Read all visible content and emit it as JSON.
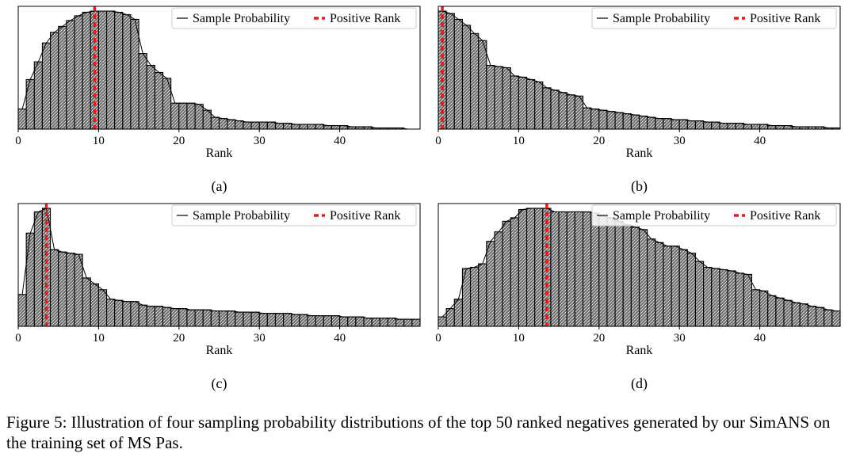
{
  "legend": {
    "line_label": "Sample Probability",
    "dash_label": "Positive Rank"
  },
  "axis": {
    "xlabel": "Rank",
    "xticks": [
      "0",
      "10",
      "20",
      "30",
      "40"
    ]
  },
  "colors": {
    "bar_fill": "#6e6e6e",
    "hatch": "#ffffff",
    "positive_line": "#e8191b",
    "line": "#000000"
  },
  "caption": "Figure 5: Illustration of four sampling probability distributions of the top 50 ranked negatives generated by our SimANS on the training set of MS Pas.",
  "chart_data": [
    {
      "type": "bar",
      "panel_label": "(a)",
      "xlabel": "Rank",
      "xlim": [
        0,
        50
      ],
      "xticks": [
        0,
        10,
        20,
        30,
        40
      ],
      "ylim": [
        0,
        1.0
      ],
      "legend": [
        "Sample Probability",
        "Positive Rank"
      ],
      "positive_rank": 9,
      "values": [
        0.17,
        0.42,
        0.57,
        0.73,
        0.82,
        0.87,
        0.92,
        0.96,
        0.99,
        1.0,
        1.0,
        1.0,
        0.99,
        0.97,
        0.93,
        0.64,
        0.54,
        0.48,
        0.43,
        0.22,
        0.22,
        0.22,
        0.21,
        0.16,
        0.1,
        0.09,
        0.08,
        0.07,
        0.06,
        0.06,
        0.06,
        0.06,
        0.05,
        0.05,
        0.04,
        0.04,
        0.04,
        0.04,
        0.03,
        0.03,
        0.03,
        0.02,
        0.02,
        0.02,
        0.01,
        0.01,
        0.01,
        0.01,
        0.0,
        0.0
      ]
    },
    {
      "type": "bar",
      "panel_label": "(b)",
      "xlabel": "Rank",
      "xlim": [
        0,
        50
      ],
      "xticks": [
        0,
        10,
        20,
        30,
        40
      ],
      "ylim": [
        0,
        1.0
      ],
      "legend": [
        "Sample Probability",
        "Positive Rank"
      ],
      "positive_rank": 0,
      "values": [
        1.0,
        0.98,
        0.93,
        0.88,
        0.81,
        0.75,
        0.54,
        0.53,
        0.52,
        0.45,
        0.44,
        0.42,
        0.4,
        0.35,
        0.33,
        0.31,
        0.29,
        0.28,
        0.18,
        0.17,
        0.16,
        0.15,
        0.14,
        0.13,
        0.12,
        0.11,
        0.1,
        0.09,
        0.09,
        0.08,
        0.08,
        0.07,
        0.07,
        0.06,
        0.06,
        0.05,
        0.05,
        0.05,
        0.04,
        0.04,
        0.04,
        0.03,
        0.03,
        0.03,
        0.02,
        0.02,
        0.02,
        0.02,
        0.01,
        0.01
      ]
    },
    {
      "type": "bar",
      "panel_label": "(c)",
      "xlabel": "Rank",
      "xlim": [
        0,
        50
      ],
      "xticks": [
        0,
        10,
        20,
        30,
        40
      ],
      "ylim": [
        0,
        1.0
      ],
      "legend": [
        "Sample Probability",
        "Positive Rank"
      ],
      "positive_rank": 3,
      "values": [
        0.27,
        0.79,
        0.97,
        1.0,
        0.65,
        0.63,
        0.62,
        0.61,
        0.41,
        0.36,
        0.31,
        0.23,
        0.22,
        0.21,
        0.21,
        0.18,
        0.17,
        0.17,
        0.16,
        0.15,
        0.15,
        0.14,
        0.14,
        0.14,
        0.13,
        0.13,
        0.13,
        0.12,
        0.12,
        0.12,
        0.11,
        0.11,
        0.11,
        0.11,
        0.1,
        0.1,
        0.09,
        0.09,
        0.09,
        0.09,
        0.08,
        0.08,
        0.08,
        0.07,
        0.07,
        0.07,
        0.07,
        0.06,
        0.06,
        0.06
      ]
    },
    {
      "type": "bar",
      "panel_label": "(d)",
      "xlabel": "Rank",
      "xlim": [
        0,
        50
      ],
      "xticks": [
        0,
        10,
        20,
        30,
        40
      ],
      "ylim": [
        0,
        1.0
      ],
      "legend": [
        "Sample Probability",
        "Positive Rank"
      ],
      "positive_rank": 13,
      "values": [
        0.08,
        0.15,
        0.23,
        0.49,
        0.5,
        0.53,
        0.72,
        0.8,
        0.89,
        0.92,
        0.99,
        1.0,
        1.0,
        1.0,
        0.97,
        0.97,
        0.97,
        0.97,
        0.97,
        0.96,
        0.93,
        0.92,
        0.89,
        0.86,
        0.84,
        0.82,
        0.74,
        0.71,
        0.68,
        0.68,
        0.65,
        0.62,
        0.55,
        0.5,
        0.49,
        0.48,
        0.47,
        0.45,
        0.44,
        0.31,
        0.3,
        0.26,
        0.24,
        0.22,
        0.2,
        0.19,
        0.17,
        0.16,
        0.14,
        0.13
      ]
    }
  ]
}
